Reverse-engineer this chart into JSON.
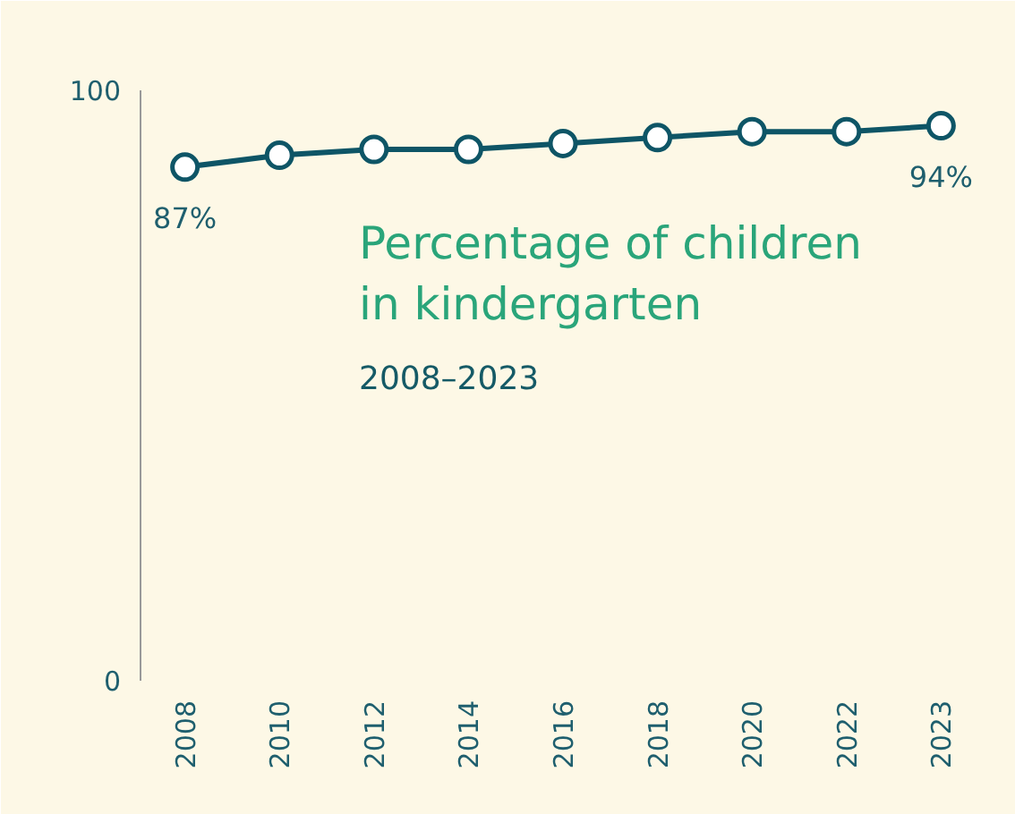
{
  "chart_data": {
    "type": "line",
    "title": "Percentage of children\nin kindergarten",
    "subtitle": "2008–2023",
    "categories": [
      "2008",
      "2010",
      "2012",
      "2014",
      "2016",
      "2018",
      "2020",
      "2022",
      "2023"
    ],
    "series": [
      {
        "color": "#0e5566",
        "values": [
          87,
          89,
          90,
          90,
          91,
          92,
          93,
          93,
          94
        ],
        "value_labels": [
          "87%",
          null,
          null,
          null,
          null,
          null,
          null,
          null,
          "94%"
        ]
      }
    ],
    "ylim": [
      0,
      100
    ],
    "yticks": [
      0,
      100
    ],
    "grid": false,
    "marker": "circle",
    "line_style": "solid"
  }
}
